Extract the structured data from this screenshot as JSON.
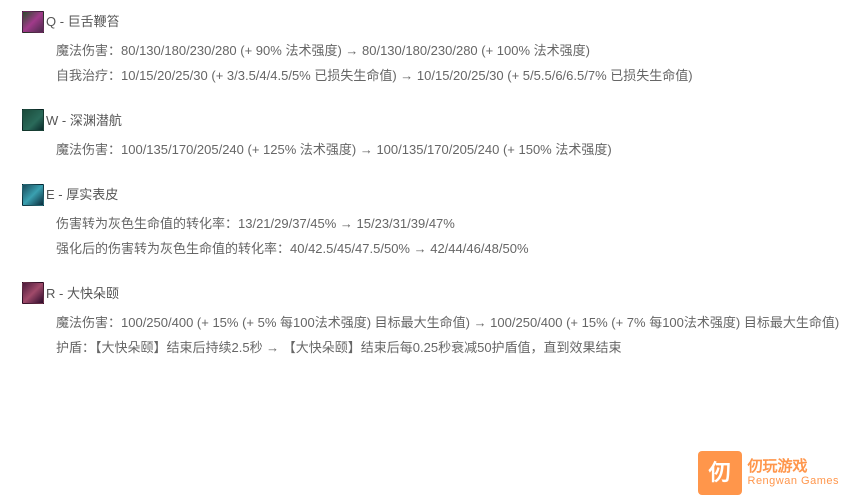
{
  "abilities": [
    {
      "key": "Q",
      "name": "巨舌鞭笞",
      "icon_bg": "linear-gradient(135deg,#2a4a2a 0%,#a03a8a 50%,#4a2a4a 100%)",
      "lines": [
        "魔法伤害：80/130/180/230/280 (+ 90% 法术强度) → 80/130/180/230/280 (+ 100% 法术强度)",
        "自我治疗：10/15/20/25/30 (+ 3/3.5/4/4.5/5% 已损失生命值) → 10/15/20/25/30 (+ 5/5.5/6/6.5/7% 已损失生命值)"
      ]
    },
    {
      "key": "W",
      "name": "深渊潜航",
      "icon_bg": "linear-gradient(135deg,#1a4a3a 0%,#2a6a5a 60%,#0a2a2a 100%)",
      "lines": [
        "魔法伤害：100/135/170/205/240 (+ 125% 法术强度) → 100/135/170/205/240 (+ 150% 法术强度)"
      ]
    },
    {
      "key": "E",
      "name": "厚实表皮",
      "icon_bg": "linear-gradient(135deg,#1a4a5a 0%,#3aa0b0 50%,#0a2a3a 100%)",
      "lines": [
        "伤害转为灰色生命值的转化率：13/21/29/37/45% → 15/23/31/39/47%",
        "强化后的伤害转为灰色生命值的转化率：40/42.5/45/47.5/50% → 42/44/46/48/50%"
      ]
    },
    {
      "key": "R",
      "name": "大快朵颐",
      "icon_bg": "linear-gradient(135deg,#4a1a3a 0%,#a04a6a 50%,#2a0a2a 100%)",
      "lines": [
        "魔法伤害：100/250/400 (+ 15% (+ 5% 每100法术强度) 目标最大生命值) → 100/250/400 (+ 15% (+ 7% 每100法术强度) 目标最大生命值)",
        "护盾：【大快朵颐】结束后持续2.5秒 → 【大快朵颐】结束后每0.25秒衰减50护盾值，直到效果结束"
      ]
    }
  ],
  "watermark": {
    "logo": "仞",
    "cn": "仞玩游戏",
    "url": "Rengwan Games"
  }
}
